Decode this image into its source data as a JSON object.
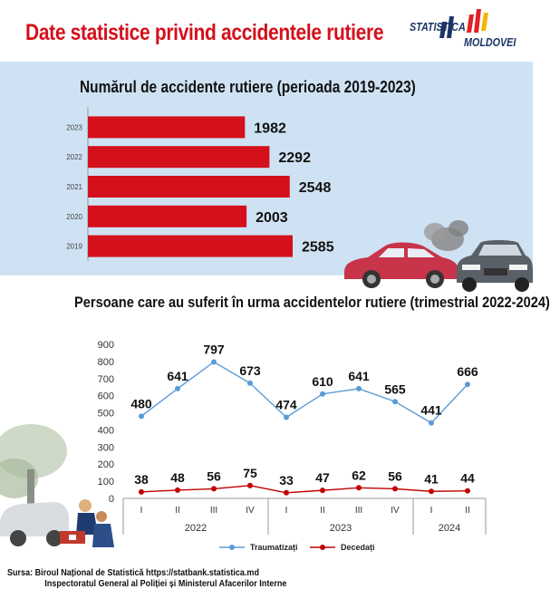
{
  "title": "Date statistice privind accidentele rutiere",
  "logo": {
    "line1": "STATISTICA",
    "line2": "MOLDOVEI",
    "stripe_colors": [
      "#1b3566",
      "#e31e24",
      "#f4b400"
    ]
  },
  "chart_data": [
    {
      "type": "bar",
      "orientation": "horizontal",
      "title": "Numărul de accidente rutiere (perioada 2019-2023)",
      "categories": [
        "2023",
        "2022",
        "2021",
        "2020",
        "2019"
      ],
      "values": [
        1982,
        2292,
        2548,
        2003,
        2585
      ],
      "color": "#d3101c",
      "xlim": [
        0,
        2600
      ],
      "grid": false,
      "data_labels": true
    },
    {
      "type": "line",
      "title": "Persoane care au suferit în urma accidentelor rutiere (trimestrial 2022-2024)",
      "x": [
        "I",
        "II",
        "III",
        "IV",
        "I",
        "II",
        "III",
        "IV",
        "I",
        "II"
      ],
      "year_groups": [
        {
          "label": "2022",
          "count": 4
        },
        {
          "label": "2023",
          "count": 4
        },
        {
          "label": "2024",
          "count": 2
        }
      ],
      "ylim": [
        0,
        900
      ],
      "yticks": [
        0,
        100,
        200,
        300,
        400,
        500,
        600,
        700,
        800,
        900
      ],
      "series": [
        {
          "name": "Traumatizați",
          "values": [
            480,
            641,
            797,
            673,
            474,
            610,
            641,
            565,
            441,
            666
          ],
          "color": "#5b9bd5"
        },
        {
          "name": "Decedați",
          "values": [
            38,
            48,
            56,
            75,
            33,
            47,
            62,
            56,
            41,
            44
          ],
          "color": "#c00000"
        }
      ],
      "legend": "bottom",
      "grid": false,
      "data_labels": true
    }
  ],
  "source": {
    "line1": "Sursa: Biroul Național de Statistică https://statbank.statistica.md",
    "line2": "Inspectoratul General al Poliției și Ministerul Afacerilor Interne"
  }
}
